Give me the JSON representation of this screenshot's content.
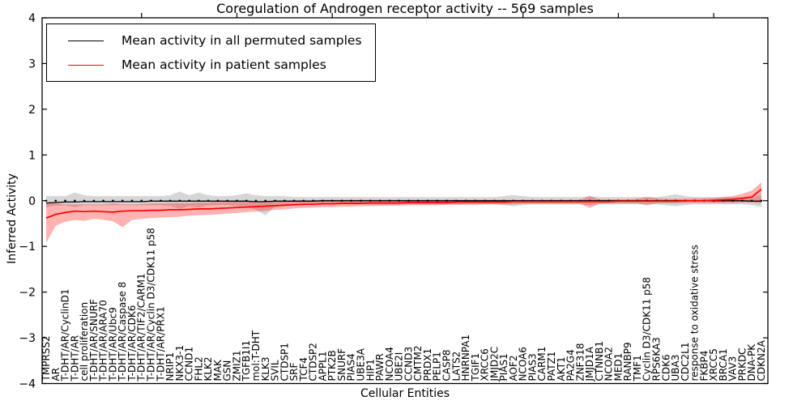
{
  "chart_data": {
    "type": "line",
    "title": "Coregulation of Androgen receptor activity -- 569 samples",
    "xlabel": "Cellular Entities",
    "ylabel": "Inferred Activity",
    "ylim": [
      -4,
      4
    ],
    "yticks": [
      -4,
      -3,
      -2,
      -1,
      0,
      1,
      2,
      3,
      4
    ],
    "grid": false,
    "legend_position": "upper left",
    "zero_line_markers": true,
    "categories": [
      "TMPRSS2",
      "AR",
      "T-DHT/AR/CyclinD1",
      "T-DHT/AR",
      "cell proliferation",
      "T-DHT/AR/SNURF",
      "T-DHT/AR/ARA70",
      "T-DHT/AR/Ubc9",
      "T-DHT/AR/Caspase 8",
      "T-DHT/AR/CDK6",
      "T-DHT/AR/TIF2/CARM1",
      "T-DHT/AR/Cyclin D3/CDK11 p58",
      "T-DHT/AR/PRX1",
      "NRIP1",
      "NKX3-1",
      "CCND1",
      "FHL2",
      "KLK2",
      "MAK",
      "GSN",
      "ZMIZ1",
      "TGFB1I1",
      "mol:T-DHT",
      "KLK3",
      "SVIL",
      "CTDSP1",
      "SRF",
      "TCF4",
      "CTDSP2",
      "APPL1",
      "PTK2B",
      "SNURF",
      "PIAS4",
      "UBE3A",
      "HIP1",
      "PAWR",
      "NCOA4",
      "UBE2I",
      "CCND3",
      "CMTM2",
      "PRDX1",
      "PELP1",
      "CASP8",
      "LATS2",
      "HNRNPA1",
      "TGIF1",
      "XRCC6",
      "JMJD2C",
      "PIAS1",
      "AOF2",
      "NCOA6",
      "PIAS3",
      "CARM1",
      "PATZ1",
      "AKT1",
      "PA2G4",
      "ZNF318",
      "JMJD1A",
      "CTNNB1",
      "NCOA2",
      "MED1",
      "RANBP9",
      "TMF1",
      "Cyclin D3/CDK11 p58",
      "RPS6KA3",
      "CDK6",
      "UBA3",
      "CDC2L1",
      "response to oxidative stress",
      "FKBP4",
      "XRCC5",
      "BRCA1",
      "VAV3",
      "PRKDC",
      "DNA-PK",
      "CDKN2A"
    ],
    "series": [
      {
        "name": "Mean activity in all permuted samples",
        "color": "#000000",
        "line_width": 1.3,
        "band_color": "rgba(120,120,120,0.30)",
        "values": [
          -0.05,
          -0.04,
          -0.03,
          -0.03,
          -0.02,
          -0.02,
          -0.02,
          -0.02,
          -0.02,
          -0.02,
          -0.02,
          -0.01,
          -0.01,
          -0.01,
          -0.01,
          -0.01,
          -0.01,
          -0.01,
          -0.01,
          -0.01,
          -0.01,
          -0.01,
          -0.02,
          -0.02,
          -0.01,
          -0.01,
          -0.01,
          -0.01,
          -0.01,
          0,
          0,
          0,
          0,
          0,
          0,
          0,
          0,
          0,
          0,
          0,
          0,
          0,
          0,
          0,
          0,
          0,
          0,
          0,
          0,
          0,
          0,
          0,
          0,
          0,
          0,
          0,
          0,
          0,
          0,
          0,
          0,
          0,
          0,
          0,
          0,
          0,
          0,
          0,
          0,
          0,
          0,
          0,
          0,
          0,
          -0.01,
          -0.01
        ],
        "band_upper": [
          0.1,
          0.1,
          0.1,
          0.18,
          0.12,
          0.1,
          0.1,
          0.1,
          0.1,
          0.1,
          0.1,
          0.1,
          0.1,
          0.12,
          0.2,
          0.12,
          0.18,
          0.12,
          0.1,
          0.1,
          0.12,
          0.16,
          0.12,
          0.1,
          0.1,
          0.1,
          0.08,
          0.08,
          0.08,
          0.08,
          0.08,
          0.08,
          0.08,
          0.08,
          0.08,
          0.08,
          0.08,
          0.08,
          0.08,
          0.08,
          0.08,
          0.08,
          0.08,
          0.08,
          0.08,
          0.08,
          0.08,
          0.08,
          0.1,
          0.12,
          0.1,
          0.08,
          0.08,
          0.08,
          0.08,
          0.08,
          0.08,
          0.1,
          0.08,
          0.08,
          0.08,
          0.08,
          0.08,
          0.08,
          0.08,
          0.1,
          0.14,
          0.1,
          0.08,
          0.08,
          0.08,
          0.08,
          0.08,
          0.08,
          0.1,
          0.12
        ],
        "band_lower": [
          -0.14,
          -0.11,
          -0.1,
          -0.14,
          -0.1,
          -0.1,
          -0.1,
          -0.1,
          -0.1,
          -0.1,
          -0.1,
          -0.1,
          -0.1,
          -0.12,
          -0.18,
          -0.12,
          -0.15,
          -0.1,
          -0.1,
          -0.1,
          -0.12,
          -0.14,
          -0.2,
          -0.32,
          -0.12,
          -0.1,
          -0.08,
          -0.08,
          -0.08,
          -0.08,
          -0.08,
          -0.08,
          -0.08,
          -0.08,
          -0.08,
          -0.08,
          -0.08,
          -0.08,
          -0.08,
          -0.08,
          -0.08,
          -0.08,
          -0.08,
          -0.08,
          -0.08,
          -0.08,
          -0.08,
          -0.08,
          -0.1,
          -0.12,
          -0.1,
          -0.08,
          -0.08,
          -0.08,
          -0.08,
          -0.08,
          -0.08,
          -0.1,
          -0.08,
          -0.08,
          -0.08,
          -0.08,
          -0.08,
          -0.08,
          -0.08,
          -0.1,
          -0.12,
          -0.1,
          -0.08,
          -0.08,
          -0.08,
          -0.08,
          -0.08,
          -0.08,
          -0.1,
          -0.14
        ]
      },
      {
        "name": "Mean activity in patient samples",
        "color": "#ff0000",
        "line_width": 1.7,
        "band_color": "rgba(255,0,0,0.30)",
        "values": [
          -0.38,
          -0.3,
          -0.26,
          -0.23,
          -0.24,
          -0.23,
          -0.24,
          -0.25,
          -0.23,
          -0.22,
          -0.22,
          -0.21,
          -0.21,
          -0.2,
          -0.2,
          -0.19,
          -0.18,
          -0.18,
          -0.17,
          -0.16,
          -0.15,
          -0.14,
          -0.13,
          -0.12,
          -0.11,
          -0.1,
          -0.09,
          -0.08,
          -0.08,
          -0.07,
          -0.07,
          -0.06,
          -0.06,
          -0.06,
          -0.05,
          -0.05,
          -0.05,
          -0.05,
          -0.04,
          -0.04,
          -0.04,
          -0.04,
          -0.04,
          -0.03,
          -0.03,
          -0.03,
          -0.03,
          -0.03,
          -0.03,
          -0.02,
          -0.02,
          -0.02,
          -0.02,
          -0.02,
          -0.02,
          -0.02,
          -0.02,
          -0.02,
          -0.02,
          -0.02,
          -0.01,
          -0.01,
          -0.01,
          -0.01,
          -0.01,
          -0.01,
          -0.01,
          0,
          0,
          0,
          0.01,
          0.02,
          0.03,
          0.05,
          0.08,
          0.25
        ],
        "band_upper": [
          -0.04,
          -0.06,
          -0.08,
          -0.08,
          -0.08,
          -0.08,
          -0.08,
          -0.06,
          -0.08,
          -0.08,
          -0.07,
          -0.06,
          -0.06,
          -0.05,
          -0.05,
          -0.05,
          -0.04,
          -0.04,
          -0.03,
          -0.03,
          -0.02,
          -0.02,
          -0.01,
          -0.01,
          0,
          0,
          0.01,
          0.01,
          0.01,
          0.02,
          0.02,
          0.02,
          0.02,
          0.02,
          0.02,
          0.02,
          0.02,
          0.02,
          0.02,
          0.02,
          0.02,
          0.02,
          0.02,
          0.02,
          0.02,
          0.02,
          0.02,
          0.02,
          0.02,
          0.02,
          0.02,
          0.02,
          0.02,
          0.02,
          0.02,
          0.02,
          0.02,
          0.1,
          0.03,
          0.03,
          0.03,
          0.03,
          0.04,
          0.08,
          0.05,
          0.04,
          0.04,
          0.04,
          0.05,
          0.05,
          0.06,
          0.08,
          0.1,
          0.15,
          0.22,
          0.4
        ],
        "band_lower": [
          -0.92,
          -0.55,
          -0.46,
          -0.42,
          -0.44,
          -0.4,
          -0.42,
          -0.45,
          -0.58,
          -0.42,
          -0.4,
          -0.38,
          -0.37,
          -0.36,
          -0.35,
          -0.33,
          -0.32,
          -0.31,
          -0.3,
          -0.28,
          -0.27,
          -0.25,
          -0.24,
          -0.22,
          -0.2,
          -0.19,
          -0.17,
          -0.16,
          -0.15,
          -0.14,
          -0.14,
          -0.13,
          -0.13,
          -0.12,
          -0.12,
          -0.11,
          -0.11,
          -0.11,
          -0.1,
          -0.1,
          -0.1,
          -0.1,
          -0.09,
          -0.09,
          -0.09,
          -0.09,
          -0.08,
          -0.08,
          -0.08,
          -0.08,
          -0.07,
          -0.07,
          -0.07,
          -0.07,
          -0.07,
          -0.07,
          -0.07,
          -0.16,
          -0.07,
          -0.06,
          -0.06,
          -0.06,
          -0.06,
          -0.1,
          -0.06,
          -0.06,
          -0.06,
          -0.05,
          -0.05,
          -0.05,
          -0.05,
          -0.05,
          -0.05,
          -0.04,
          -0.04,
          -0.06
        ]
      }
    ]
  }
}
